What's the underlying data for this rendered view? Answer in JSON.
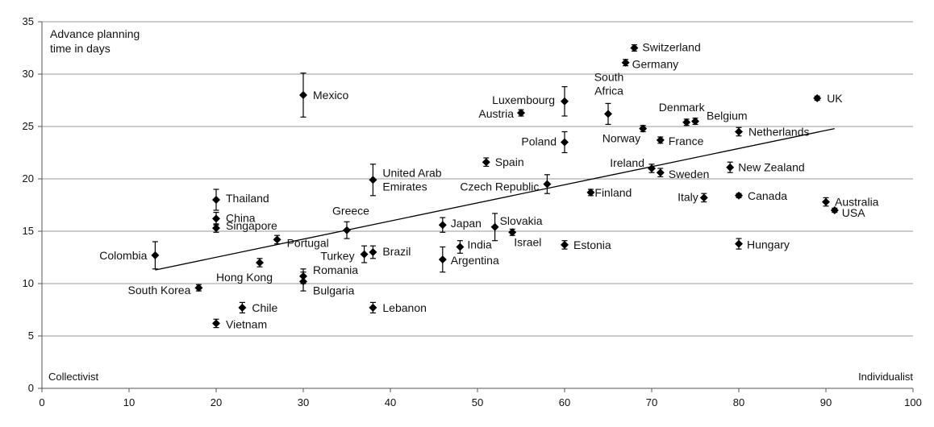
{
  "chart_data": {
    "type": "scatter",
    "xlim": [
      0,
      100
    ],
    "ylim": [
      0,
      35
    ],
    "x_ticks": [
      "0",
      "10",
      "20",
      "30",
      "40",
      "50",
      "60",
      "70",
      "80",
      "90",
      "100"
    ],
    "y_ticks": [
      "0",
      "5",
      "10",
      "15",
      "20",
      "25",
      "30",
      "35"
    ],
    "grid": "horizontal",
    "ylabel": "Advance planning time in days",
    "ylabel_lines": [
      "Advance planning",
      "time in days"
    ],
    "x_left_label": "Collectivist",
    "x_right_label": "Individualist",
    "trendline": {
      "x": [
        13,
        91
      ],
      "y": [
        11.3,
        24.8
      ]
    },
    "marker_color": "#000000",
    "points": [
      {
        "name": "Colombia",
        "x": 13,
        "y": 12.7,
        "err": 1.3
      },
      {
        "name": "South Korea",
        "x": 18,
        "y": 9.6,
        "err": 0.3
      },
      {
        "name": "Thailand",
        "x": 20,
        "y": 18.0,
        "err": 1.0
      },
      {
        "name": "China",
        "x": 20,
        "y": 16.2,
        "err": 0.6
      },
      {
        "name": "Singapore",
        "x": 20,
        "y": 15.3,
        "err": 0.4
      },
      {
        "name": "Vietnam",
        "x": 20,
        "y": 6.2,
        "err": 0.4
      },
      {
        "name": "Chile",
        "x": 23,
        "y": 7.7,
        "err": 0.5
      },
      {
        "name": "Hong Kong",
        "x": 25,
        "y": 12.0,
        "err": 0.4
      },
      {
        "name": "Portugal",
        "x": 27,
        "y": 14.2,
        "err": 0.4
      },
      {
        "name": "Mexico",
        "x": 30,
        "y": 28.0,
        "err": 2.1
      },
      {
        "name": "Romania",
        "x": 30,
        "y": 10.7,
        "err": 0.7
      },
      {
        "name": "Bulgaria",
        "x": 30,
        "y": 10.2,
        "err": 0.9
      },
      {
        "name": "Greece",
        "x": 35,
        "y": 15.1,
        "err": 0.8
      },
      {
        "name": "Turkey",
        "x": 37,
        "y": 12.8,
        "err": 0.8
      },
      {
        "name": "Brazil",
        "x": 38,
        "y": 13.0,
        "err": 0.6
      },
      {
        "name": "United Arab Emirates",
        "x": 38,
        "y": 19.9,
        "err": 1.5
      },
      {
        "name": "Lebanon",
        "x": 38,
        "y": 7.7,
        "err": 0.5
      },
      {
        "name": "Japan",
        "x": 46,
        "y": 15.6,
        "err": 0.7
      },
      {
        "name": "Argentina",
        "x": 46,
        "y": 12.3,
        "err": 1.2
      },
      {
        "name": "India",
        "x": 48,
        "y": 13.5,
        "err": 0.6
      },
      {
        "name": "Spain",
        "x": 51,
        "y": 21.6,
        "err": 0.4
      },
      {
        "name": "Slovakia",
        "x": 52,
        "y": 15.4,
        "err": 1.3
      },
      {
        "name": "Israel",
        "x": 54,
        "y": 14.9,
        "err": 0.3
      },
      {
        "name": "Austria",
        "x": 55,
        "y": 26.3,
        "err": 0.3
      },
      {
        "name": "Czech Republic",
        "x": 58,
        "y": 19.5,
        "err": 0.9
      },
      {
        "name": "Luxembourg",
        "x": 60,
        "y": 27.4,
        "err": 1.4
      },
      {
        "name": "Poland",
        "x": 60,
        "y": 23.5,
        "err": 1.0
      },
      {
        "name": "Estonia",
        "x": 60,
        "y": 13.7,
        "err": 0.4
      },
      {
        "name": "Finland",
        "x": 63,
        "y": 18.7,
        "err": 0.3
      },
      {
        "name": "South Africa",
        "x": 65,
        "y": 26.2,
        "err": 1.0
      },
      {
        "name": "Germany",
        "x": 67,
        "y": 31.1,
        "err": 0.3
      },
      {
        "name": "Switzerland",
        "x": 68,
        "y": 32.5,
        "err": 0.3
      },
      {
        "name": "Norway",
        "x": 69,
        "y": 24.8,
        "err": 0.3
      },
      {
        "name": "Ireland",
        "x": 70,
        "y": 21.0,
        "err": 0.4
      },
      {
        "name": "Sweden",
        "x": 71,
        "y": 20.6,
        "err": 0.4
      },
      {
        "name": "France",
        "x": 71,
        "y": 23.7,
        "err": 0.3
      },
      {
        "name": "Denmark",
        "x": 74,
        "y": 25.4,
        "err": 0.3
      },
      {
        "name": "Belgium",
        "x": 75,
        "y": 25.5,
        "err": 0.3
      },
      {
        "name": "Italy",
        "x": 76,
        "y": 18.2,
        "err": 0.4
      },
      {
        "name": "New Zealand",
        "x": 79,
        "y": 21.1,
        "err": 0.5
      },
      {
        "name": "Netherlands",
        "x": 80,
        "y": 24.5,
        "err": 0.4
      },
      {
        "name": "Canada",
        "x": 80,
        "y": 18.4,
        "err": 0.2
      },
      {
        "name": "Hungary",
        "x": 80,
        "y": 13.8,
        "err": 0.5
      },
      {
        "name": "UK",
        "x": 89,
        "y": 27.7,
        "err": 0.2
      },
      {
        "name": "Australia",
        "x": 90,
        "y": 17.8,
        "err": 0.4
      },
      {
        "name": "USA",
        "x": 91,
        "y": 17.0,
        "err": 0.2
      }
    ]
  },
  "labels": {
    "Colombia": "Colombia",
    "South Korea": "South Korea",
    "Thailand": "Thailand",
    "China": "China",
    "Singapore": "Singapore",
    "Vietnam": "Vietnam",
    "Chile": "Chile",
    "Hong Kong": "Hong Kong",
    "Portugal": "Portugal",
    "Mexico": "Mexico",
    "Romania": "Romania",
    "Bulgaria": "Bulgaria",
    "Greece": "Greece",
    "Turkey": "Turkey",
    "Brazil": "Brazil",
    "United Arab Emirates": [
      "United Arab",
      "Emirates"
    ],
    "Lebanon": "Lebanon",
    "Japan": "Japan",
    "Argentina": "Argentina",
    "India": "India",
    "Spain": "Spain",
    "Slovakia": "Slovakia",
    "Israel": "Israel",
    "Austria": "Austria",
    "Czech Republic": "Czech Republic",
    "Luxembourg": "Luxembourg",
    "Poland": "Poland",
    "Estonia": "Estonia",
    "Finland": "Finland",
    "South Africa": [
      "South",
      "Africa"
    ],
    "Germany": "Germany",
    "Switzerland": "Switzerland",
    "Norway": "Norway",
    "Ireland": "Ireland",
    "Sweden": "Sweden",
    "France": "France",
    "Denmark": "Denmark",
    "Belgium": "Belgium",
    "Italy": "Italy",
    "New Zealand": "New Zealand",
    "Netherlands": "Netherlands",
    "Canada": "Canada",
    "Hungary": "Hungary",
    "UK": "UK",
    "Australia": "Australia",
    "USA": "USA"
  }
}
